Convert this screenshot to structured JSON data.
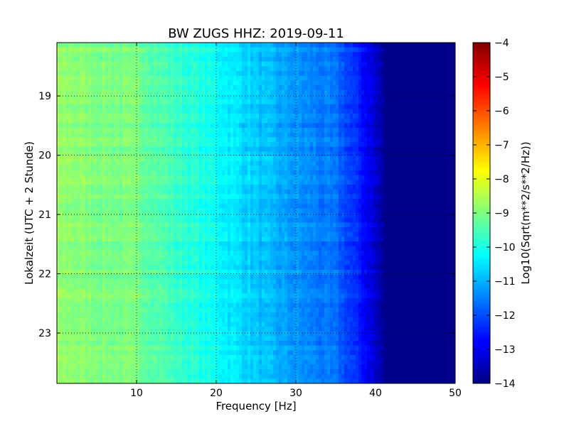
{
  "chart_data": {
    "type": "heatmap",
    "title": "BW ZUGS HHZ: 2019-09-11",
    "xlabel": "Frequency [Hz]",
    "ylabel": "Lokalzeit (UTC + 2 Stunde)",
    "xlim": [
      0,
      50
    ],
    "ylim": [
      23.85,
      18.1
    ],
    "y_inverted": true,
    "xticks": [
      10,
      20,
      30,
      40,
      50
    ],
    "yticks": [
      19,
      20,
      21,
      22,
      23
    ],
    "grid": true,
    "colormap": "jet",
    "colorbar": {
      "label": "Log10(Sqrt(m**2/s**2/Hz))",
      "range": [
        -14,
        -4
      ],
      "ticks": [
        -4,
        -5,
        -6,
        -7,
        -8,
        -9,
        -10,
        -11,
        -12,
        -13,
        -14
      ]
    },
    "spectrum_profile": {
      "frequency_hz": [
        0,
        5,
        10,
        15,
        20,
        25,
        30,
        35,
        38,
        40,
        41,
        45,
        50
      ],
      "log10_amplitude": [
        -8.8,
        -9.0,
        -9.1,
        -9.7,
        -10.2,
        -10.8,
        -11.3,
        -11.7,
        -12.5,
        -13.2,
        -13.8,
        -13.9,
        -13.9
      ]
    }
  }
}
